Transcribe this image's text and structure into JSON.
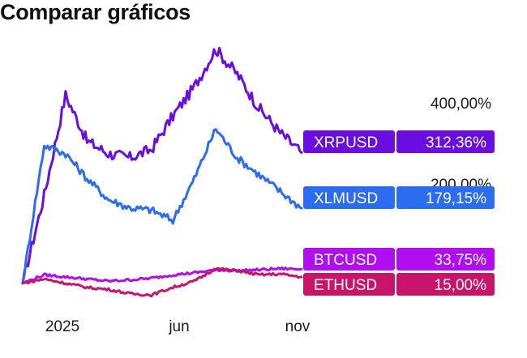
{
  "header": {
    "title": "Comparar gráficos"
  },
  "chart_data": {
    "type": "line",
    "title": "Comparar gráficos",
    "xlabel": "",
    "ylabel": "",
    "x": [
      "2024-10",
      "2024-11",
      "2024-12",
      "2025-01",
      "2025-02",
      "2025-03",
      "2025-04",
      "2025-05",
      "2025-06",
      "2025-07",
      "2025-08",
      "2025-09",
      "2025-10",
      "2025-11"
    ],
    "x_ticks": [
      "2025",
      "jun",
      "nov"
    ],
    "y_ticks": [
      "400,00%",
      "200,00%"
    ],
    "y_tick_values": [
      400,
      200
    ],
    "ylim": [
      -20,
      600
    ],
    "grid": false,
    "legend": "right-end labels",
    "series": [
      {
        "name": "XRPUSD",
        "end_label": "312,36%",
        "color": "#6a0ee0",
        "values": [
          0,
          210,
          450,
          340,
          310,
          300,
          320,
          400,
          470,
          560,
          500,
          420,
          360,
          312.36
        ]
      },
      {
        "name": "XLMUSD",
        "end_label": "179,15%",
        "color": "#2b6cf0",
        "values": [
          0,
          330,
          310,
          250,
          200,
          180,
          175,
          150,
          250,
          370,
          300,
          260,
          220,
          179.15
        ]
      },
      {
        "name": "BTCUSD",
        "end_label": "33,75%",
        "color": "#b10ef0",
        "values": [
          0,
          20,
          15,
          10,
          5,
          8,
          12,
          20,
          25,
          32,
          30,
          32,
          35,
          33.75
        ]
      },
      {
        "name": "ETHUSD",
        "end_label": "15,00%",
        "color": "#c8146a",
        "values": [
          0,
          10,
          0,
          -10,
          -15,
          -25,
          -28,
          -10,
          5,
          35,
          30,
          20,
          22,
          15.0
        ]
      }
    ]
  }
}
